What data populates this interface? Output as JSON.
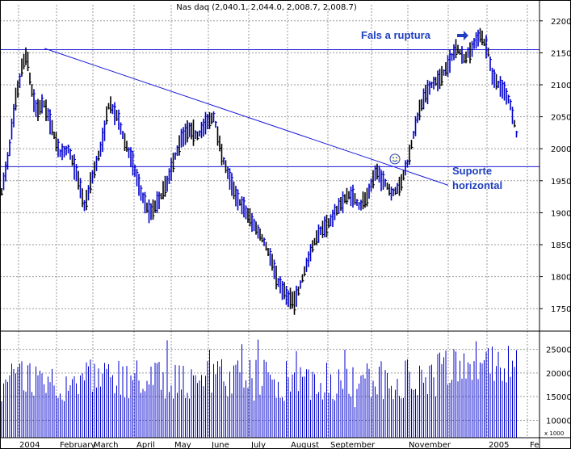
{
  "chart_data": {
    "type": "ohlc",
    "title": "Nas daq (2,040.1, 2,044.0, 2,008.7, 2,008.7)",
    "y_ticks": [
      1750,
      1800,
      1850,
      1900,
      1950,
      2000,
      2050,
      2100,
      2150,
      2200
    ],
    "ylim": [
      1725,
      2225
    ],
    "volume_ticks": [
      "25000",
      "20000",
      "15000",
      "10000"
    ],
    "volume_unit": "x 1000",
    "volume_ylim": [
      7000,
      27500
    ],
    "x_ticks": [
      "2004",
      "February",
      "March",
      "April",
      "May",
      "June",
      "July",
      "August",
      "September",
      "November",
      "2005",
      "Fe"
    ],
    "grid": true,
    "price_series_sample": [
      [
        1,
        1925
      ],
      [
        10,
        1985
      ],
      [
        20,
        2080
      ],
      [
        28,
        2130
      ],
      [
        33,
        2150
      ],
      [
        38,
        2100
      ],
      [
        45,
        2060
      ],
      [
        55,
        2070
      ],
      [
        65,
        2030
      ],
      [
        75,
        1990
      ],
      [
        85,
        2000
      ],
      [
        95,
        1960
      ],
      [
        105,
        1910
      ],
      [
        115,
        1960
      ],
      [
        125,
        2000
      ],
      [
        135,
        2070
      ],
      [
        145,
        2050
      ],
      [
        155,
        2010
      ],
      [
        165,
        1975
      ],
      [
        175,
        1930
      ],
      [
        185,
        1900
      ],
      [
        195,
        1915
      ],
      [
        205,
        1940
      ],
      [
        215,
        1980
      ],
      [
        225,
        2020
      ],
      [
        235,
        2030
      ],
      [
        245,
        2020
      ],
      [
        255,
        2040
      ],
      [
        265,
        2050
      ],
      [
        275,
        1990
      ],
      [
        285,
        1950
      ],
      [
        295,
        1920
      ],
      [
        305,
        1900
      ],
      [
        315,
        1880
      ],
      [
        325,
        1860
      ],
      [
        335,
        1830
      ],
      [
        345,
        1790
      ],
      [
        355,
        1770
      ],
      [
        365,
        1760
      ],
      [
        375,
        1800
      ],
      [
        385,
        1840
      ],
      [
        395,
        1870
      ],
      [
        405,
        1880
      ],
      [
        415,
        1900
      ],
      [
        425,
        1920
      ],
      [
        435,
        1930
      ],
      [
        445,
        1910
      ],
      [
        455,
        1925
      ],
      [
        465,
        1965
      ],
      [
        475,
        1950
      ],
      [
        485,
        1930
      ],
      [
        495,
        1940
      ],
      [
        505,
        1980
      ],
      [
        515,
        2040
      ],
      [
        525,
        2080
      ],
      [
        535,
        2100
      ],
      [
        545,
        2110
      ],
      [
        555,
        2130
      ],
      [
        565,
        2160
      ],
      [
        575,
        2140
      ],
      [
        585,
        2160
      ],
      [
        595,
        2180
      ],
      [
        605,
        2150
      ],
      [
        610,
        2110
      ],
      [
        618,
        2100
      ],
      [
        625,
        2090
      ],
      [
        632,
        2070
      ],
      [
        640,
        2020
      ]
    ],
    "horizontal_lines": [
      2155,
      1972
    ],
    "trendline": {
      "from": [
        55,
        2157
      ],
      "to": [
        555,
        1943
      ]
    },
    "annotations": [
      {
        "text": "Fals a ruptura",
        "x": 447,
        "y": 2172
      },
      {
        "text": "Suporte",
        "x": 560,
        "y": 1960
      },
      {
        "text": "horizontal",
        "x": 560,
        "y": 1937
      }
    ],
    "arrow_annotation": {
      "x": 566,
      "y": 2177
    },
    "smiley_annotation": {
      "x": 489,
      "y": 1984
    }
  }
}
